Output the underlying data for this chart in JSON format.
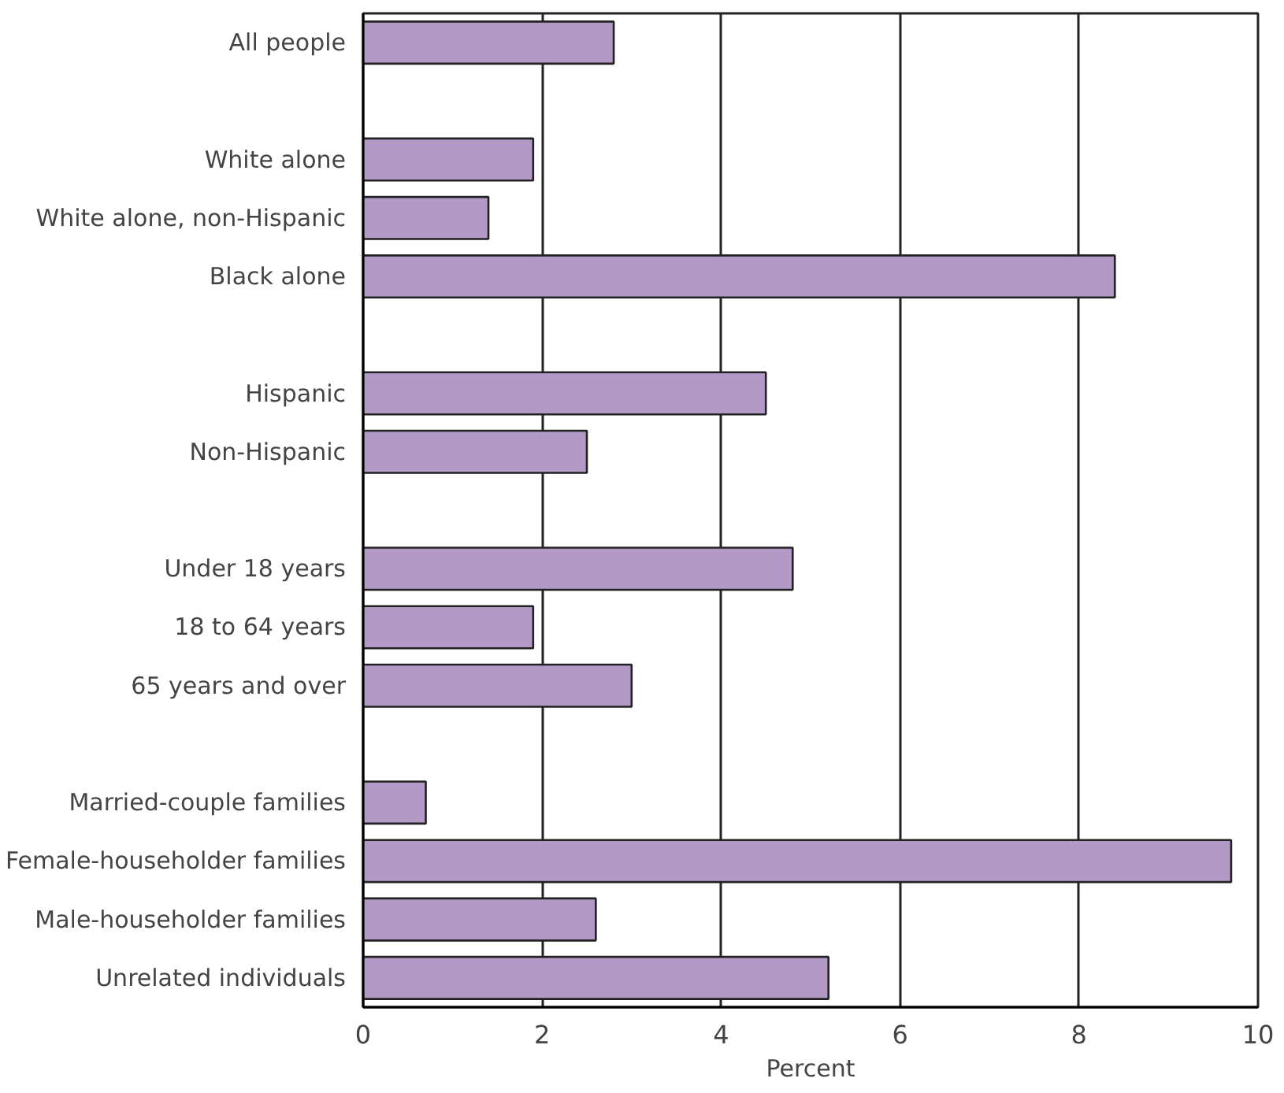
{
  "chart_data": {
    "type": "bar",
    "orientation": "horizontal",
    "xlabel": "Percent",
    "categories": [
      "All people",
      null,
      "White alone",
      "White alone, non-Hispanic",
      "Black alone",
      null,
      "Hispanic",
      "Non-Hispanic",
      null,
      "Under 18 years",
      "18 to 64 years",
      "65 years and over",
      null,
      "Married-couple families",
      "Female-householder families",
      "Male-householder families",
      "Unrelated individuals"
    ],
    "values": [
      2.8,
      null,
      1.9,
      1.4,
      8.4,
      null,
      4.5,
      2.5,
      null,
      4.8,
      1.9,
      3.0,
      null,
      0.7,
      9.7,
      2.6,
      5.2
    ],
    "color": "#b399c6",
    "xlim": [
      0,
      10
    ],
    "xticks": [
      0,
      2,
      4,
      6,
      8,
      10
    ],
    "grid": "x"
  }
}
